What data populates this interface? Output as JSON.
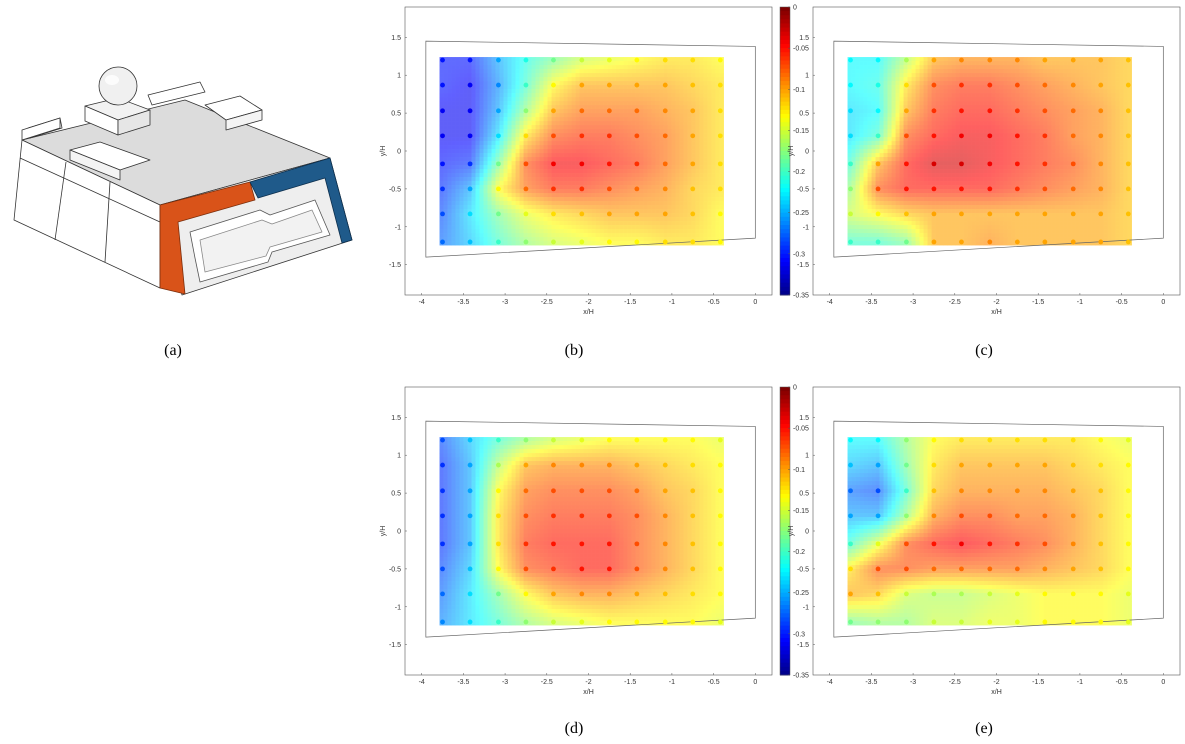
{
  "labels": {
    "a": "(a)",
    "b": "(b)",
    "c": "(c)",
    "d": "(d)",
    "e": "(e)"
  },
  "colorbar": {
    "ticks": [
      "0",
      "-0.05",
      "-0.1",
      "-0.15",
      "-0.2",
      "-0.25",
      "-0.3",
      "-0.35"
    ],
    "range": [
      -0.35,
      0
    ]
  },
  "colors": {
    "orange_panel": "#d95319",
    "blue_panel": "#1f5a8a",
    "model_gray": "#d9d9d9"
  },
  "chart_data": [
    {
      "type": "heatmap",
      "panel": "b",
      "xlabel": "x/H",
      "ylabel": "y/H",
      "xlim": [
        -4.2,
        0.2
      ],
      "ylim": [
        -1.9,
        1.9
      ],
      "xticks": [
        "-4",
        "-3.5",
        "-3",
        "-2.5",
        "-2",
        "-1.5",
        "-1",
        "-0.5",
        "0"
      ],
      "yticks": [
        "1.5",
        "1",
        "0.5",
        "0",
        "-0.5",
        "-1",
        "-1.5"
      ],
      "x": [
        -3.75,
        -3.42,
        -3.08,
        -2.75,
        -2.42,
        -2.08,
        -1.75,
        -1.42,
        -1.08,
        -0.75,
        -0.42
      ],
      "y": [
        1.2,
        0.87,
        0.53,
        0.2,
        -0.17,
        -0.5,
        -0.83,
        -1.2
      ],
      "values": [
        [
          -0.3,
          -0.3,
          -0.25,
          -0.21,
          -0.18,
          -0.15,
          -0.14,
          -0.13,
          -0.12,
          -0.12,
          -0.13
        ],
        [
          -0.3,
          -0.31,
          -0.26,
          -0.2,
          -0.13,
          -0.1,
          -0.1,
          -0.1,
          -0.1,
          -0.11,
          -0.12
        ],
        [
          -0.31,
          -0.31,
          -0.25,
          -0.17,
          -0.1,
          -0.08,
          -0.08,
          -0.08,
          -0.09,
          -0.1,
          -0.12
        ],
        [
          -0.31,
          -0.31,
          -0.23,
          -0.12,
          -0.07,
          -0.06,
          -0.06,
          -0.07,
          -0.08,
          -0.1,
          -0.12
        ],
        [
          -0.3,
          -0.29,
          -0.18,
          -0.07,
          -0.04,
          -0.04,
          -0.05,
          -0.06,
          -0.08,
          -0.1,
          -0.12
        ],
        [
          -0.29,
          -0.25,
          -0.13,
          -0.08,
          -0.06,
          -0.06,
          -0.07,
          -0.08,
          -0.09,
          -0.11,
          -0.12
        ],
        [
          -0.28,
          -0.23,
          -0.18,
          -0.14,
          -0.12,
          -0.11,
          -0.1,
          -0.1,
          -0.1,
          -0.11,
          -0.13
        ],
        [
          -0.27,
          -0.24,
          -0.2,
          -0.17,
          -0.15,
          -0.14,
          -0.13,
          -0.13,
          -0.12,
          -0.12,
          -0.13
        ]
      ]
    },
    {
      "type": "heatmap",
      "panel": "c",
      "xlabel": "x/H",
      "ylabel": "y/H",
      "xlim": [
        -4.2,
        0.2
      ],
      "ylim": [
        -1.9,
        1.9
      ],
      "xticks": [
        "-4",
        "-3.5",
        "-3",
        "-2.5",
        "-2",
        "-1.5",
        "-1",
        "-0.5",
        "0"
      ],
      "yticks": [
        "1.5",
        "1",
        "0.5",
        "0",
        "-0.5",
        "-1",
        "-1.5"
      ],
      "x": [
        -3.75,
        -3.42,
        -3.08,
        -2.75,
        -2.42,
        -2.08,
        -1.75,
        -1.42,
        -1.08,
        -0.75,
        -0.42
      ],
      "y": [
        1.2,
        0.87,
        0.53,
        0.2,
        -0.17,
        -0.5,
        -0.83,
        -1.2
      ],
      "values": [
        [
          -0.22,
          -0.22,
          -0.16,
          -0.1,
          -0.09,
          -0.09,
          -0.09,
          -0.1,
          -0.1,
          -0.1,
          -0.11
        ],
        [
          -0.22,
          -0.21,
          -0.12,
          -0.07,
          -0.06,
          -0.06,
          -0.07,
          -0.08,
          -0.09,
          -0.1,
          -0.11
        ],
        [
          -0.23,
          -0.22,
          -0.1,
          -0.06,
          -0.05,
          -0.05,
          -0.06,
          -0.07,
          -0.08,
          -0.09,
          -0.11
        ],
        [
          -0.23,
          -0.2,
          -0.07,
          -0.05,
          -0.04,
          -0.04,
          -0.05,
          -0.06,
          -0.08,
          -0.09,
          -0.11
        ],
        [
          -0.2,
          -0.1,
          -0.05,
          -0.03,
          -0.03,
          -0.04,
          -0.05,
          -0.06,
          -0.07,
          -0.09,
          -0.11
        ],
        [
          -0.17,
          -0.07,
          -0.05,
          -0.05,
          -0.05,
          -0.05,
          -0.06,
          -0.07,
          -0.08,
          -0.09,
          -0.11
        ],
        [
          -0.15,
          -0.13,
          -0.11,
          -0.1,
          -0.1,
          -0.1,
          -0.1,
          -0.1,
          -0.1,
          -0.1,
          -0.11
        ],
        [
          -0.2,
          -0.2,
          -0.18,
          -0.1,
          -0.1,
          -0.09,
          -0.1,
          -0.1,
          -0.1,
          -0.1,
          -0.11
        ]
      ]
    },
    {
      "type": "heatmap",
      "panel": "d",
      "xlabel": "x/H",
      "ylabel": "y/H",
      "xlim": [
        -4.2,
        0.2
      ],
      "ylim": [
        -1.9,
        1.9
      ],
      "xticks": [
        "-4",
        "-3.5",
        "-3",
        "-2.5",
        "-2",
        "-1.5",
        "-1",
        "-0.5",
        "0"
      ],
      "yticks": [
        "1.5",
        "1",
        "0.5",
        "0",
        "-0.5",
        "-1",
        "-1.5"
      ],
      "x": [
        -3.75,
        -3.42,
        -3.08,
        -2.75,
        -2.42,
        -2.08,
        -1.75,
        -1.42,
        -1.08,
        -0.75,
        -0.42
      ],
      "y": [
        1.2,
        0.87,
        0.53,
        0.2,
        -0.17,
        -0.5,
        -0.83,
        -1.2
      ],
      "values": [
        [
          -0.28,
          -0.24,
          -0.2,
          -0.17,
          -0.15,
          -0.14,
          -0.13,
          -0.13,
          -0.13,
          -0.13,
          -0.14
        ],
        [
          -0.29,
          -0.25,
          -0.16,
          -0.1,
          -0.09,
          -0.09,
          -0.09,
          -0.1,
          -0.11,
          -0.12,
          -0.13
        ],
        [
          -0.29,
          -0.25,
          -0.13,
          -0.08,
          -0.07,
          -0.07,
          -0.07,
          -0.08,
          -0.1,
          -0.11,
          -0.13
        ],
        [
          -0.29,
          -0.25,
          -0.12,
          -0.07,
          -0.06,
          -0.06,
          -0.06,
          -0.07,
          -0.09,
          -0.11,
          -0.13
        ],
        [
          -0.29,
          -0.25,
          -0.12,
          -0.06,
          -0.05,
          -0.05,
          -0.05,
          -0.07,
          -0.09,
          -0.11,
          -0.13
        ],
        [
          -0.28,
          -0.24,
          -0.13,
          -0.07,
          -0.06,
          -0.05,
          -0.05,
          -0.07,
          -0.09,
          -0.11,
          -0.13
        ],
        [
          -0.27,
          -0.23,
          -0.18,
          -0.13,
          -0.1,
          -0.09,
          -0.09,
          -0.1,
          -0.11,
          -0.12,
          -0.13
        ],
        [
          -0.26,
          -0.23,
          -0.2,
          -0.17,
          -0.15,
          -0.14,
          -0.13,
          -0.13,
          -0.13,
          -0.13,
          -0.14
        ]
      ]
    },
    {
      "type": "heatmap",
      "panel": "e",
      "xlabel": "x/H",
      "ylabel": "y/H",
      "xlim": [
        -4.2,
        0.2
      ],
      "ylim": [
        -1.9,
        1.9
      ],
      "xticks": [
        "-4",
        "-3.5",
        "-3",
        "-2.5",
        "-2",
        "-1.5",
        "-1",
        "-0.5",
        "0"
      ],
      "yticks": [
        "1.5",
        "1",
        "0.5",
        "0",
        "-0.5",
        "-1",
        "-1.5"
      ],
      "x": [
        -3.75,
        -3.42,
        -3.08,
        -2.75,
        -2.42,
        -2.08,
        -1.75,
        -1.42,
        -1.08,
        -0.75,
        -0.42
      ],
      "y": [
        1.2,
        0.87,
        0.53,
        0.2,
        -0.17,
        -0.5,
        -0.83,
        -1.2
      ],
      "values": [
        [
          -0.22,
          -0.22,
          -0.17,
          -0.13,
          -0.12,
          -0.12,
          -0.12,
          -0.12,
          -0.12,
          -0.13,
          -0.14
        ],
        [
          -0.24,
          -0.25,
          -0.18,
          -0.12,
          -0.1,
          -0.1,
          -0.1,
          -0.1,
          -0.11,
          -0.12,
          -0.13
        ],
        [
          -0.27,
          -0.28,
          -0.2,
          -0.11,
          -0.09,
          -0.09,
          -0.09,
          -0.09,
          -0.1,
          -0.11,
          -0.13
        ],
        [
          -0.25,
          -0.25,
          -0.17,
          -0.09,
          -0.07,
          -0.07,
          -0.08,
          -0.08,
          -0.09,
          -0.11,
          -0.13
        ],
        [
          -0.2,
          -0.14,
          -0.07,
          -0.05,
          -0.04,
          -0.05,
          -0.06,
          -0.07,
          -0.09,
          -0.11,
          -0.13
        ],
        [
          -0.12,
          -0.07,
          -0.07,
          -0.08,
          -0.08,
          -0.08,
          -0.08,
          -0.09,
          -0.1,
          -0.11,
          -0.13
        ],
        [
          -0.1,
          -0.11,
          -0.15,
          -0.16,
          -0.16,
          -0.15,
          -0.14,
          -0.13,
          -0.13,
          -0.13,
          -0.14
        ],
        [
          -0.18,
          -0.17,
          -0.17,
          -0.15,
          -0.15,
          -0.14,
          -0.14,
          -0.13,
          -0.13,
          -0.13,
          -0.14
        ]
      ]
    }
  ]
}
